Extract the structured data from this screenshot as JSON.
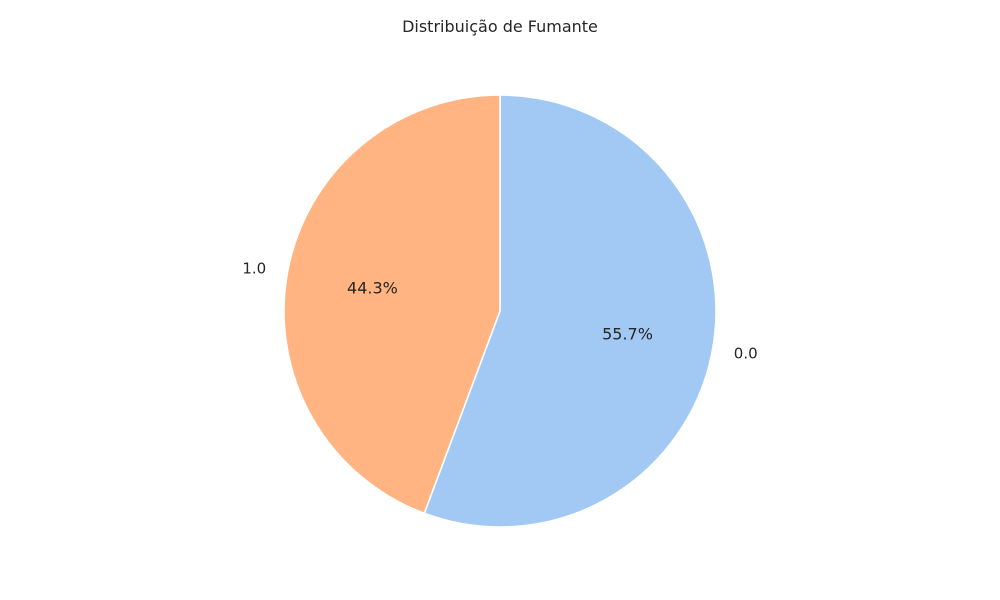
{
  "chart_data": {
    "type": "pie",
    "title": "Distribuição de Fumante",
    "categories": [
      "0.0",
      "1.0"
    ],
    "values": [
      55.7,
      44.3
    ],
    "value_labels": [
      "55.7%",
      "44.3%"
    ],
    "colors": [
      "#a1c9f4",
      "#ffb482"
    ],
    "start_angle_deg": 90,
    "direction": "clockwise",
    "legend": "none"
  }
}
